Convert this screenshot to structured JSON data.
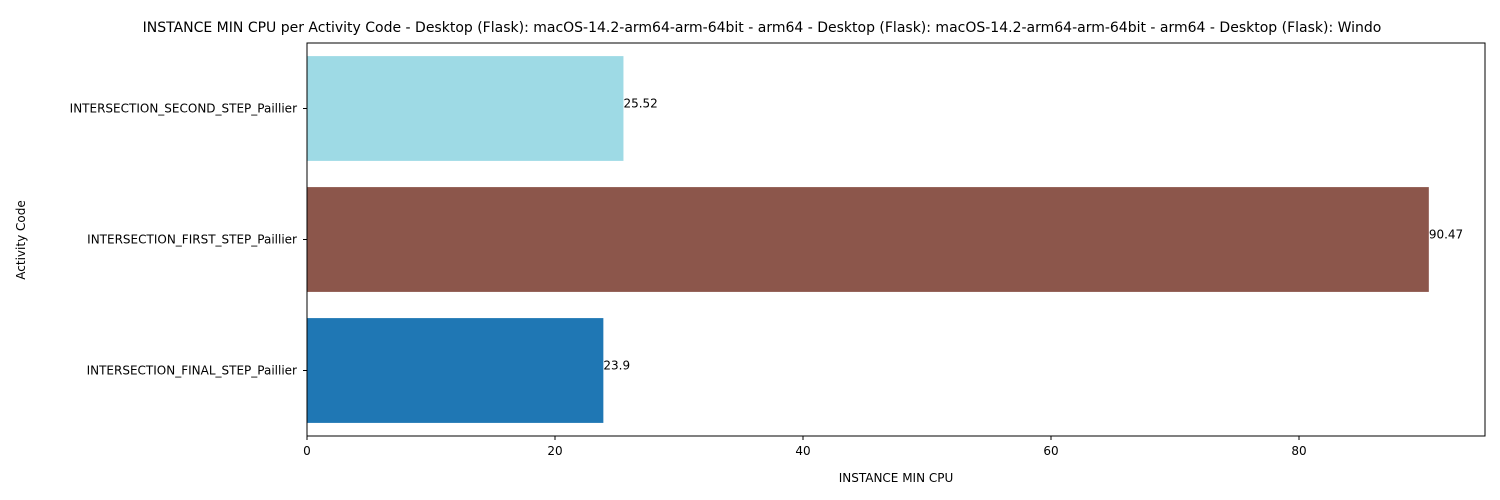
{
  "chart_data": {
    "type": "bar",
    "orientation": "horizontal",
    "title": "INSTANCE MIN CPU per Activity Code - Desktop (Flask): macOS-14.2-arm64-arm-64bit - arm64 - Desktop (Flask): macOS-14.2-arm64-arm-64bit - arm64 - Desktop (Flask): Windo",
    "xlabel": "INSTANCE MIN CPU",
    "ylabel": "Activity Code",
    "categories": [
      "INTERSECTION_FINAL_STEP_Paillier",
      "INTERSECTION_FIRST_STEP_Paillier",
      "INTERSECTION_SECOND_STEP_Paillier"
    ],
    "values": [
      23.9,
      90.47,
      25.52
    ],
    "value_labels": [
      "23.9",
      "90.47",
      "25.52"
    ],
    "colors": [
      "#1f77b4",
      "#8c564b",
      "#9edae5"
    ],
    "xlim": [
      0,
      95
    ],
    "xticks": [
      0,
      20,
      40,
      60,
      80
    ],
    "xtick_labels": [
      "0",
      "20",
      "40",
      "60",
      "80"
    ],
    "grid": false,
    "legend": "none"
  }
}
